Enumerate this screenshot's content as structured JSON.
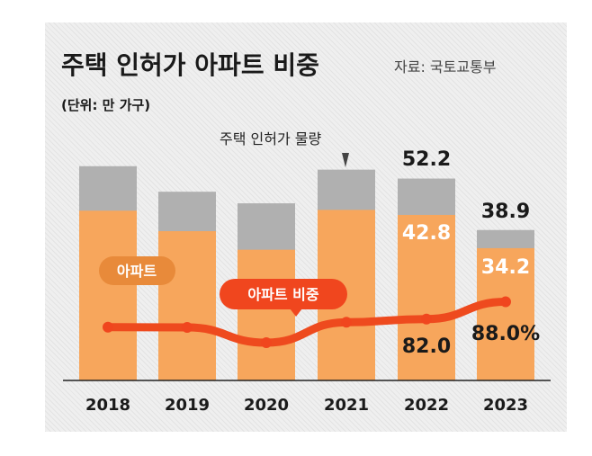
{
  "chart_data": {
    "type": "bar",
    "title": "주택 인허가 아파트 비중",
    "source": "자료: 국토교통부",
    "unit": "(단위: 만 가구)",
    "categories": [
      "2018",
      "2019",
      "2020",
      "2021",
      "2022",
      "2023"
    ],
    "series": [
      {
        "name": "주택 인허가 물량",
        "values": [
          55.4,
          48.8,
          45.8,
          54.5,
          52.2,
          38.9
        ],
        "color": "#b0b0b0"
      },
      {
        "name": "아파트",
        "values": [
          43.9,
          38.6,
          33.8,
          44.1,
          42.8,
          34.2
        ],
        "color": "#f7a65c"
      },
      {
        "name": "아파트 비중",
        "values": [
          79.2,
          79.1,
          73.8,
          80.9,
          82.0,
          88.0
        ],
        "unit": "%",
        "color": "#f0461e"
      }
    ],
    "data_labels": {
      "total_2022": "52.2",
      "apt_2022": "42.8",
      "share_2022": "82.0",
      "total_2023": "38.9",
      "apt_2023": "34.2",
      "share_2023": "88.0%"
    },
    "callout_total": "주택 인허가 물량",
    "legend_apt": "아파트",
    "legend_share": "아파트 비중",
    "ylim": [
      0,
      70
    ]
  }
}
